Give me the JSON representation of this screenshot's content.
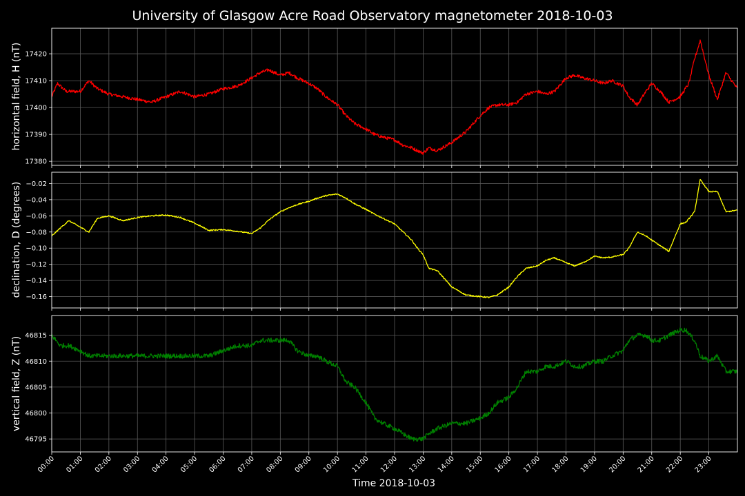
{
  "chart_data": {
    "type": "line",
    "title": "University of Glasgow Acre Road Observatory magnetometer 2018-10-03",
    "xlabel": "Time 2018-10-03",
    "x_ticks": [
      "00:00",
      "01:00",
      "02:00",
      "03:00",
      "04:00",
      "05:00",
      "06:00",
      "07:00",
      "08:00",
      "09:00",
      "10:00",
      "11:00",
      "12:00",
      "13:00",
      "14:00",
      "15:00",
      "16:00",
      "17:00",
      "18:00",
      "19:00",
      "20:00",
      "21:00",
      "22:00",
      "23:00"
    ],
    "x_range_hours": [
      0,
      24
    ],
    "grid": true,
    "panels": [
      {
        "ylabel": "horizontal field, H (nT)",
        "color": "#ff0000",
        "ylim": [
          17378.5,
          17429.5
        ],
        "yticks": [
          17380,
          17390,
          17400,
          17410,
          17420
        ],
        "ytick_labels": [
          "17380",
          "17390",
          "17400",
          "17410",
          "17420"
        ],
        "noise": 1.2,
        "series": [
          {
            "name": "H",
            "x": [
              0,
              0.2,
              0.5,
              1,
              1.3,
              1.6,
              2,
              2.5,
              3,
              3.5,
              4,
              4.5,
              5,
              5.5,
              6,
              6.5,
              7,
              7.3,
              7.6,
              8,
              8.3,
              8.6,
              9,
              9.3,
              9.6,
              10,
              10.3,
              10.6,
              11,
              11.3,
              11.6,
              12,
              12.3,
              12.6,
              12.8,
              13,
              13.2,
              13.5,
              14,
              14.5,
              15,
              15.3,
              15.6,
              16,
              16.3,
              16.6,
              17,
              17.3,
              17.6,
              18,
              18.3,
              18.6,
              19,
              19.3,
              19.6,
              20,
              20.2,
              20.5,
              20.8,
              21,
              21.3,
              21.6,
              22,
              22.3,
              22.5,
              22.7,
              23,
              23.3,
              23.6,
              24
            ],
            "y": [
              17404,
              17409,
              17406,
              17406,
              17410,
              17407,
              17405,
              17404,
              17403,
              17402,
              17404,
              17406,
              17404,
              17405,
              17407,
              17408,
              17411,
              17413,
              17414,
              17412,
              17413,
              17411,
              17409,
              17407,
              17404,
              17401,
              17397,
              17394,
              17392,
              17390,
              17389,
              17388,
              17386,
              17385,
              17384,
              17383,
              17385,
              17384,
              17387,
              17391,
              17397,
              17400,
              17401,
              17401,
              17402,
              17405,
              17406,
              17405,
              17406,
              17411,
              17412,
              17411,
              17410,
              17409,
              17410,
              17408,
              17404,
              17401,
              17406,
              17409,
              17406,
              17402,
              17404,
              17409,
              17418,
              17425,
              17412,
              17403,
              17413,
              17407
            ]
          }
        ]
      },
      {
        "ylabel": "declination, D (degrees)",
        "color": "#ffff00",
        "ylim": [
          -0.174,
          -0.006
        ],
        "yticks": [
          -0.16,
          -0.14,
          -0.12,
          -0.1,
          -0.08,
          -0.06,
          -0.04,
          -0.02
        ],
        "ytick_labels": [
          "−0.16",
          "−0.14",
          "−0.12",
          "−0.10",
          "−0.08",
          "−0.06",
          "−0.04",
          "−0.02"
        ],
        "noise": 0.0015,
        "series": [
          {
            "name": "D",
            "x": [
              0,
              0.3,
              0.6,
              1,
              1.3,
              1.6,
              2,
              2.5,
              3,
              3.5,
              4,
              4.5,
              5,
              5.5,
              6,
              6.5,
              7,
              7.3,
              7.6,
              8,
              8.3,
              8.6,
              9,
              9.3,
              9.6,
              10,
              10.3,
              10.6,
              11,
              11.3,
              11.6,
              12,
              12.3,
              12.6,
              12.8,
              13,
              13.2,
              13.5,
              14,
              14.5,
              15,
              15.3,
              15.6,
              16,
              16.3,
              16.6,
              17,
              17.3,
              17.6,
              18,
              18.3,
              18.6,
              19,
              19.3,
              19.6,
              20,
              20.2,
              20.5,
              20.8,
              21,
              21.3,
              21.6,
              22,
              22.2,
              22.5,
              22.7,
              23,
              23.3,
              23.6,
              24
            ],
            "y": [
              -0.085,
              -0.075,
              -0.066,
              -0.074,
              -0.08,
              -0.063,
              -0.06,
              -0.066,
              -0.062,
              -0.06,
              -0.059,
              -0.062,
              -0.069,
              -0.078,
              -0.077,
              -0.079,
              -0.082,
              -0.075,
              -0.065,
              -0.055,
              -0.05,
              -0.046,
              -0.042,
              -0.038,
              -0.035,
              -0.033,
              -0.038,
              -0.045,
              -0.052,
              -0.058,
              -0.063,
              -0.07,
              -0.08,
              -0.09,
              -0.1,
              -0.108,
              -0.125,
              -0.128,
              -0.148,
              -0.158,
              -0.16,
              -0.161,
              -0.158,
              -0.148,
              -0.135,
              -0.125,
              -0.122,
              -0.115,
              -0.112,
              -0.118,
              -0.122,
              -0.118,
              -0.11,
              -0.112,
              -0.111,
              -0.108,
              -0.1,
              -0.08,
              -0.085,
              -0.09,
              -0.097,
              -0.104,
              -0.07,
              -0.068,
              -0.055,
              -0.015,
              -0.03,
              -0.03,
              -0.055,
              -0.053
            ]
          }
        ]
      },
      {
        "ylabel": "vertical field, Z (nT)",
        "color": "#008000",
        "ylim": [
          46792.5,
          46818.8
        ],
        "yticks": [
          46795,
          46800,
          46805,
          46810,
          46815
        ],
        "ytick_labels": [
          "46795",
          "46800",
          "46805",
          "46810",
          "46815"
        ],
        "noise": 0.9,
        "series": [
          {
            "name": "Z",
            "x": [
              0,
              0.3,
              0.6,
              1,
              1.3,
              1.6,
              2,
              2.5,
              3,
              3.5,
              4,
              4.5,
              5,
              5.5,
              6,
              6.5,
              7,
              7.3,
              7.6,
              8,
              8.3,
              8.6,
              9,
              9.3,
              9.6,
              10,
              10.3,
              10.6,
              11,
              11.3,
              11.6,
              12,
              12.3,
              12.6,
              12.8,
              13,
              13.2,
              13.5,
              14,
              14.5,
              15,
              15.3,
              15.6,
              16,
              16.3,
              16.6,
              17,
              17.3,
              17.6,
              18,
              18.3,
              18.6,
              19,
              19.3,
              19.6,
              20,
              20.2,
              20.5,
              20.8,
              21,
              21.3,
              21.6,
              22,
              22.2,
              22.5,
              22.7,
              23,
              23.3,
              23.6,
              24
            ],
            "y": [
              46815,
              46813,
              46813,
              46812,
              46811,
              46811,
              46811,
              46811,
              46811,
              46811,
              46811,
              46811,
              46811,
              46811,
              46812,
              46813,
              46813,
              46814,
              46814,
              46814,
              46814,
              46812,
              46811,
              46811,
              46810,
              46809,
              46806,
              46805,
              46802,
              46799,
              46798,
              46797,
              46796,
              46795,
              46795,
              46795,
              46796,
              46797,
              46798,
              46798,
              46799,
              46800,
              46802,
              46803,
              46805,
              46808,
              46808,
              46809,
              46809,
              46810,
              46809,
              46809,
              46810,
              46810,
              46811,
              46812,
              46814,
              46815,
              46815,
              46814,
              46814,
              46815,
              46816,
              46816,
              46814,
              46811,
              46810,
              46811,
              46808,
              46808
            ]
          }
        ]
      }
    ]
  }
}
